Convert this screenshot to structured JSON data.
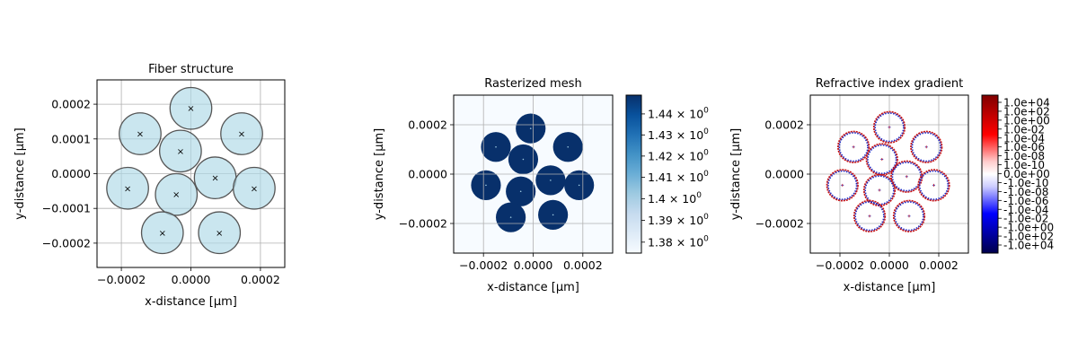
{
  "chart_data": [
    {
      "type": "scatter",
      "title": "Fiber structure",
      "xlabel": "x-distance [μm]",
      "ylabel": "y-distance [μm]",
      "xlim": [
        -0.00027,
        0.00027
      ],
      "ylim": [
        -0.00027,
        0.00027
      ],
      "grid": true,
      "xticks": [
        -0.0002,
        0.0,
        0.0002
      ],
      "xtick_labels": [
        "−0.0002",
        "0.0000",
        "0.0002"
      ],
      "yticks": [
        0.0002,
        0.0001,
        0.0,
        -0.0001,
        -0.0002
      ],
      "ytick_labels": [
        "0.0002",
        "0.0001",
        "0.0000",
        "−0.0001",
        "−0.0002"
      ],
      "fiber_radius": 6e-05,
      "fibers": [
        {
          "x": 0.0,
          "y": 0.000188
        },
        {
          "x": -0.000146,
          "y": 0.000115
        },
        {
          "x": 0.000146,
          "y": 0.000115
        },
        {
          "x": -3e-05,
          "y": 6.5e-05
        },
        {
          "x": 7e-05,
          "y": -1.2e-05
        },
        {
          "x": -0.000182,
          "y": -4.2e-05
        },
        {
          "x": 0.000182,
          "y": -4.2e-05
        },
        {
          "x": -4.2e-05,
          "y": -6e-05
        },
        {
          "x": -8.2e-05,
          "y": -0.00017
        },
        {
          "x": 8.2e-05,
          "y": -0.00017
        }
      ],
      "fill_color": "#add8e6",
      "edge_color": "#555555"
    },
    {
      "type": "heatmap",
      "title": "Rasterized mesh",
      "xlabel": "x-distance [μm]",
      "ylabel": "y-distance [μm]",
      "xlim": [
        -0.00032,
        0.00032
      ],
      "ylim": [
        -0.00032,
        0.00032
      ],
      "grid": true,
      "xticks": [
        -0.0002,
        0.0,
        0.0002
      ],
      "xtick_labels": [
        "−0.0002",
        "0.0000",
        "0.0002"
      ],
      "yticks": [
        0.0002,
        0.0,
        -0.0002
      ],
      "ytick_labels": [
        "0.0002",
        "0.0000",
        "−0.0002"
      ],
      "fiber_radius": 6e-05,
      "fibers": [
        {
          "x": -1e-05,
          "y": 0.000185
        },
        {
          "x": -0.00015,
          "y": 0.00011
        },
        {
          "x": 0.00014,
          "y": 0.00011
        },
        {
          "x": -4e-05,
          "y": 6e-05
        },
        {
          "x": 7e-05,
          "y": -2.5e-05
        },
        {
          "x": -0.00019,
          "y": -4.5e-05
        },
        {
          "x": 0.000185,
          "y": -4.5e-05
        },
        {
          "x": -5e-05,
          "y": -7e-05
        },
        {
          "x": -9e-05,
          "y": -0.000175
        },
        {
          "x": 8e-05,
          "y": -0.000165
        }
      ],
      "background_index": 1.377,
      "core_index": 1.445,
      "colorscale": "Blues",
      "colorbar": {
        "scale": "log",
        "range": [
          1.375,
          1.449
        ],
        "ticks": [
          1.38,
          1.39,
          1.4,
          1.41,
          1.42,
          1.43,
          1.44
        ],
        "tick_bases": [
          "1.38 × 10",
          "1.39 × 10",
          "1.4 × 10",
          "1.41 × 10",
          "1.42 × 10",
          "1.43 × 10",
          "1.44 × 10"
        ],
        "tick_exponent": "0"
      }
    },
    {
      "type": "heatmap",
      "title": "Refractive index gradient",
      "xlabel": "x-distance [μm]",
      "ylabel": "y-distance [μm]",
      "xlim": [
        -0.00032,
        0.00032
      ],
      "ylim": [
        -0.00032,
        0.00032
      ],
      "grid": true,
      "xticks": [
        -0.0002,
        0.0,
        0.0002
      ],
      "xtick_labels": [
        "−0.0002",
        "0.0000",
        "0.0002"
      ],
      "yticks": [
        0.0002,
        0.0,
        -0.0002
      ],
      "ytick_labels": [
        "0.0002",
        "0.0000",
        "−0.0002"
      ],
      "fiber_radius": 6e-05,
      "fibers": [
        {
          "x": 0.0,
          "y": 0.00019
        },
        {
          "x": -0.000145,
          "y": 0.00011
        },
        {
          "x": 0.00015,
          "y": 0.00011
        },
        {
          "x": -3e-05,
          "y": 6e-05
        },
        {
          "x": 7e-05,
          "y": -1e-05
        },
        {
          "x": -0.00019,
          "y": -4.5e-05
        },
        {
          "x": 0.00018,
          "y": -4.5e-05
        },
        {
          "x": -4e-05,
          "y": -6.5e-05
        },
        {
          "x": -8e-05,
          "y": -0.00017
        },
        {
          "x": 8e-05,
          "y": -0.00017
        }
      ],
      "colorscale": "seismic",
      "colorbar": {
        "scale": "symlog",
        "tick_labels": [
          "1.0e+04",
          "1.0e+02",
          "1.0e+00",
          "1.0e-02",
          "1.0e-04",
          "1.0e-06",
          "1.0e-08",
          "1.0e-10",
          "0.0e+00",
          "-1.0e-10",
          "-1.0e-08",
          "-1.0e-06",
          "-1.0e-04",
          "-1.0e-02",
          "-1.0e+00",
          "-1.0e+02",
          "-1.0e+04"
        ]
      }
    }
  ]
}
